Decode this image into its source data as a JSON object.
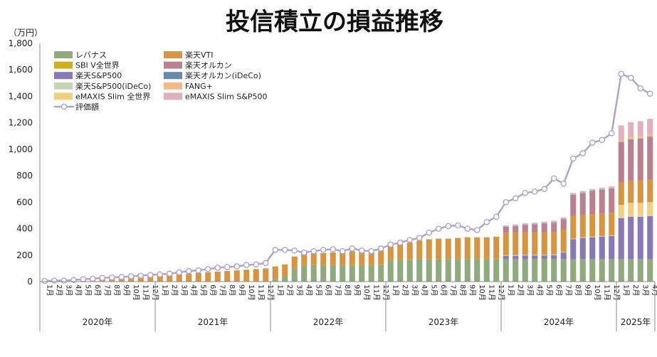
{
  "chart_data": {
    "type": "bar",
    "title": "投信積立の損益推移",
    "ylabel": "（万円）",
    "ylim": [
      0,
      1800
    ],
    "yticks": [
      "0",
      "200",
      "400",
      "600",
      "800",
      "1,000",
      "1,200",
      "1,400",
      "1,600",
      "1,800"
    ],
    "grid": false,
    "legend_position": "top-left",
    "years": [
      "2020年",
      "2021年",
      "2022年",
      "2023年",
      "2024年",
      "2025年"
    ],
    "x": [
      "2020-01",
      "2020-02",
      "2020-03",
      "2020-04",
      "2020-05",
      "2020-06",
      "2020-07",
      "2020-08",
      "2020-09",
      "2020-10",
      "2020-11",
      "2020-12",
      "2021-01",
      "2021-02",
      "2021-03",
      "2021-04",
      "2021-05",
      "2021-06",
      "2021-07",
      "2021-08",
      "2021-09",
      "2021-10",
      "2021-11",
      "2021-12",
      "2022-01",
      "2022-02",
      "2022-03",
      "2022-04",
      "2022-05",
      "2022-06",
      "2022-07",
      "2022-08",
      "2022-09",
      "2022-10",
      "2022-11",
      "2022-12",
      "2023-01",
      "2023-02",
      "2023-03",
      "2023-04",
      "2023-05",
      "2023-06",
      "2023-07",
      "2023-08",
      "2023-09",
      "2023-10",
      "2023-11",
      "2023-12",
      "2024-01",
      "2024-02",
      "2024-03",
      "2024-04",
      "2024-05",
      "2024-06",
      "2024-07",
      "2024-08",
      "2024-09",
      "2024-10",
      "2024-11",
      "2024-12",
      "2025-01",
      "2025-02",
      "2025-03",
      "2025-04"
    ],
    "x_tick_labels": [
      "1月",
      "2月",
      "3月",
      "4月",
      "5月",
      "6月",
      "7月",
      "8月",
      "9月",
      "10月",
      "11月",
      "12月",
      "1月",
      "2月",
      "3月",
      "4月",
      "5月",
      "6月",
      "7月",
      "8月",
      "9月",
      "10月",
      "11月",
      "12月",
      "1月",
      "2月",
      "3月",
      "4月",
      "5月",
      "6月",
      "7月",
      "8月",
      "9月",
      "10月",
      "11月",
      "12月",
      "1月",
      "2月",
      "3月",
      "4月",
      "5月",
      "6月",
      "7月",
      "8月",
      "9月",
      "10月",
      "11月",
      "12月",
      "1月",
      "2月",
      "3月",
      "4月",
      "5月",
      "6月",
      "7月",
      "8月",
      "9月",
      "10月",
      "11月",
      "12月",
      "1月",
      "2月",
      "3月",
      "4月"
    ],
    "series": [
      {
        "name": "レバナス",
        "kind": "bar",
        "color": "#8faa7c",
        "values": [
          0,
          0,
          0,
          0,
          0,
          0,
          0,
          0,
          0,
          0,
          0,
          0,
          0,
          0,
          0,
          0,
          0,
          0,
          0,
          0,
          0,
          0,
          0,
          0,
          20,
          40,
          100,
          125,
          125,
          125,
          125,
          125,
          125,
          125,
          125,
          125,
          160,
          165,
          165,
          170,
          170,
          170,
          170,
          170,
          170,
          170,
          170,
          170,
          170,
          170,
          170,
          170,
          170,
          170,
          170,
          170,
          170,
          170,
          170,
          170,
          170,
          170,
          170,
          170
        ]
      },
      {
        "name": "SBI V全世界",
        "kind": "bar",
        "color": "#d4ac1f",
        "values": [
          0,
          0,
          0,
          0,
          0,
          0,
          0,
          0,
          0,
          0,
          0,
          0,
          0,
          0,
          0,
          0,
          0,
          0,
          0,
          0,
          0,
          0,
          0,
          0,
          0,
          0,
          0,
          0,
          0,
          0,
          0,
          0,
          0,
          0,
          0,
          0,
          0,
          0,
          0,
          0,
          0,
          0,
          0,
          0,
          0,
          0,
          0,
          0,
          0,
          0,
          0,
          0,
          0,
          0,
          0,
          0,
          0,
          0,
          0,
          0,
          0,
          0,
          0,
          0
        ]
      },
      {
        "name": "楽天S&P500",
        "kind": "bar",
        "color": "#8878b4",
        "values": [
          0,
          0,
          0,
          0,
          0,
          0,
          0,
          0,
          0,
          0,
          0,
          0,
          0,
          0,
          0,
          0,
          0,
          0,
          0,
          0,
          0,
          0,
          0,
          0,
          0,
          0,
          0,
          0,
          0,
          0,
          0,
          0,
          0,
          0,
          0,
          0,
          0,
          0,
          0,
          0,
          0,
          0,
          0,
          0,
          0,
          0,
          0,
          0,
          25,
          25,
          28,
          28,
          28,
          30,
          50,
          150,
          160,
          165,
          170,
          175,
          310,
          320,
          320,
          325
        ]
      },
      {
        "name": "楽天S&P500(iDeCo)",
        "kind": "bar",
        "color": "#c5d3b8",
        "values": [
          0,
          0,
          0,
          0,
          0,
          0,
          0,
          0,
          0,
          0,
          0,
          0,
          0,
          0,
          0,
          0,
          0,
          0,
          0,
          0,
          0,
          0,
          0,
          0,
          0,
          0,
          0,
          0,
          0,
          0,
          0,
          0,
          0,
          0,
          0,
          0,
          0,
          0,
          0,
          0,
          0,
          0,
          0,
          0,
          0,
          0,
          0,
          0,
          5,
          5,
          5,
          5,
          5,
          5,
          5,
          5,
          5,
          5,
          5,
          5,
          5,
          5,
          5,
          5
        ]
      },
      {
        "name": "eMAXIS Slim 全世界",
        "kind": "bar",
        "color": "#f0d080",
        "values": [
          0,
          0,
          0,
          0,
          0,
          0,
          0,
          0,
          0,
          0,
          0,
          0,
          0,
          0,
          0,
          0,
          0,
          0,
          0,
          0,
          0,
          0,
          0,
          0,
          0,
          0,
          0,
          0,
          0,
          0,
          0,
          0,
          0,
          0,
          0,
          0,
          0,
          0,
          0,
          0,
          0,
          0,
          0,
          0,
          0,
          0,
          0,
          0,
          0,
          0,
          0,
          0,
          0,
          0,
          0,
          0,
          0,
          0,
          0,
          0,
          95,
          100,
          100,
          100
        ]
      },
      {
        "name": "楽天VTI",
        "kind": "bar",
        "color": "#d69542",
        "values": [
          5,
          8,
          10,
          12,
          15,
          18,
          22,
          25,
          28,
          32,
          35,
          40,
          45,
          50,
          55,
          60,
          65,
          70,
          75,
          80,
          85,
          90,
          95,
          100,
          95,
          90,
          90,
          90,
          90,
          90,
          95,
          100,
          105,
          110,
          110,
          110,
          110,
          120,
          130,
          140,
          150,
          155,
          155,
          160,
          165,
          165,
          165,
          170,
          170,
          170,
          170,
          170,
          170,
          170,
          170,
          170,
          170,
          170,
          170,
          170,
          170,
          170,
          170,
          170
        ]
      },
      {
        "name": "楽天オルカン",
        "kind": "bar",
        "color": "#b98090",
        "values": [
          0,
          0,
          0,
          0,
          0,
          0,
          0,
          0,
          0,
          0,
          0,
          0,
          0,
          0,
          0,
          0,
          0,
          0,
          0,
          0,
          0,
          0,
          0,
          0,
          0,
          0,
          0,
          0,
          0,
          0,
          0,
          0,
          0,
          0,
          0,
          0,
          0,
          0,
          0,
          0,
          0,
          0,
          0,
          0,
          0,
          0,
          0,
          0,
          40,
          45,
          50,
          55,
          60,
          65,
          70,
          155,
          160,
          170,
          175,
          180,
          300,
          305,
          310,
          320
        ]
      },
      {
        "name": "楽天オルカン(iDeCo)",
        "kind": "bar",
        "color": "#6688aa",
        "values": [
          0,
          0,
          0,
          0,
          0,
          0,
          0,
          0,
          0,
          0,
          0,
          0,
          0,
          0,
          0,
          0,
          0,
          0,
          0,
          0,
          0,
          0,
          0,
          0,
          0,
          0,
          0,
          0,
          0,
          0,
          0,
          0,
          0,
          0,
          0,
          0,
          0,
          0,
          0,
          0,
          0,
          0,
          0,
          0,
          0,
          0,
          0,
          0,
          5,
          5,
          5,
          5,
          5,
          5,
          5,
          5,
          5,
          5,
          5,
          5,
          5,
          5,
          5,
          5
        ]
      },
      {
        "name": "FANG+",
        "kind": "bar",
        "color": "#f4b88a",
        "values": [
          0,
          0,
          0,
          0,
          0,
          0,
          0,
          0,
          0,
          0,
          0,
          0,
          0,
          0,
          0,
          0,
          0,
          0,
          0,
          0,
          0,
          0,
          0,
          0,
          0,
          0,
          0,
          0,
          0,
          0,
          0,
          0,
          0,
          0,
          0,
          0,
          0,
          0,
          0,
          0,
          0,
          0,
          0,
          0,
          0,
          0,
          0,
          0,
          0,
          0,
          0,
          0,
          0,
          0,
          0,
          0,
          0,
          0,
          0,
          0,
          20,
          20,
          20,
          20
        ]
      },
      {
        "name": "eMAXIS Slim S&P500",
        "kind": "bar",
        "color": "#e0b0c0",
        "values": [
          0,
          0,
          0,
          0,
          0,
          0,
          0,
          0,
          0,
          0,
          0,
          0,
          0,
          0,
          0,
          0,
          0,
          0,
          0,
          0,
          0,
          0,
          0,
          0,
          0,
          0,
          0,
          0,
          0,
          0,
          0,
          0,
          0,
          0,
          0,
          0,
          0,
          0,
          0,
          0,
          0,
          0,
          0,
          0,
          0,
          0,
          0,
          0,
          10,
          12,
          12,
          12,
          15,
          15,
          15,
          15,
          15,
          15,
          15,
          15,
          105,
          110,
          112,
          115
        ]
      },
      {
        "name": "評価額",
        "kind": "line",
        "color": "#b0a4cc",
        "values": [
          5,
          8,
          8,
          12,
          18,
          22,
          28,
          32,
          35,
          40,
          45,
          50,
          55,
          60,
          70,
          80,
          85,
          95,
          105,
          110,
          115,
          125,
          130,
          140,
          240,
          240,
          235,
          220,
          230,
          240,
          245,
          230,
          250,
          235,
          230,
          250,
          280,
          295,
          315,
          330,
          370,
          400,
          420,
          425,
          400,
          390,
          450,
          490,
          600,
          630,
          670,
          680,
          700,
          780,
          740,
          930,
          970,
          1050,
          1070,
          1120,
          1570,
          1540,
          1460,
          1420
        ]
      }
    ],
    "legend_order": [
      "レバナス",
      "楽天VTI",
      "SBI V全世界",
      "楽天オルカン",
      "楽天S&P500",
      "楽天オルカン(iDeCo)",
      "楽天S&P500(iDeCo)",
      "FANG+",
      "eMAXIS Slim 全世界",
      "eMAXIS Slim S&P500",
      "評価額"
    ]
  }
}
